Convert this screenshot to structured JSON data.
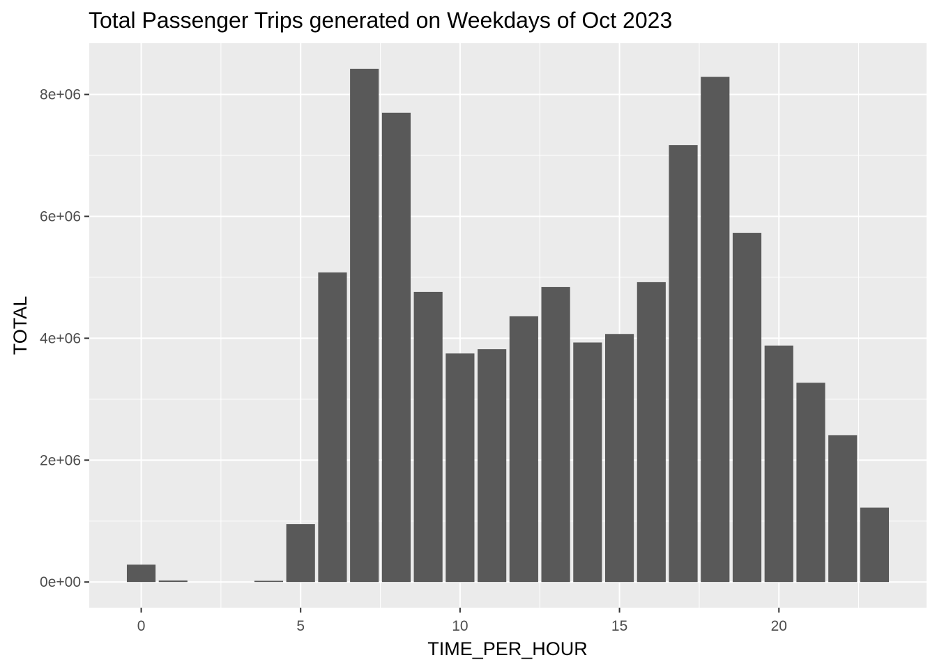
{
  "chart_data": {
    "type": "bar",
    "title": "Total Passenger Trips generated on Weekdays of Oct 2023",
    "xlabel": "TIME_PER_HOUR",
    "ylabel": "TOTAL",
    "x": [
      0,
      1,
      2,
      3,
      4,
      5,
      6,
      7,
      8,
      9,
      10,
      11,
      12,
      13,
      14,
      15,
      16,
      17,
      18,
      19,
      20,
      21,
      22,
      23
    ],
    "values": [
      285000,
      25000,
      0,
      0,
      20000,
      950000,
      5080000,
      8420000,
      7700000,
      4760000,
      3750000,
      3820000,
      4360000,
      4840000,
      3930000,
      4070000,
      4920000,
      7170000,
      8290000,
      5730000,
      3880000,
      3270000,
      2410000,
      1220000
    ],
    "x_ticks": [
      0,
      5,
      10,
      15,
      20
    ],
    "x_tick_labels": [
      "0",
      "5",
      "10",
      "15",
      "20"
    ],
    "y_ticks": [
      0,
      2000000,
      4000000,
      6000000,
      8000000
    ],
    "y_tick_labels": [
      "0e+00",
      "2e+06",
      "4e+06",
      "6e+06",
      "8e+06"
    ],
    "xlim": [
      -1.63,
      24.63
    ],
    "ylim": [
      -421000,
      8841000
    ],
    "grid": true,
    "colors": {
      "bar": "#595959",
      "panel": "#ebebeb",
      "grid": "#ffffff"
    }
  }
}
